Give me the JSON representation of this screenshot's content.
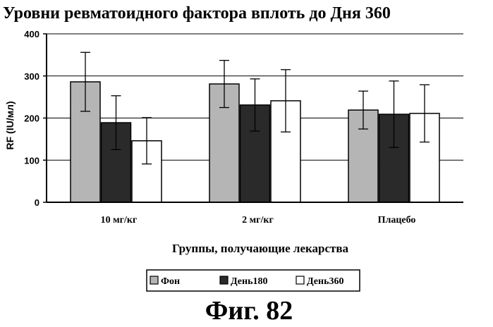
{
  "chart_data": {
    "type": "bar",
    "title": "Уровни ревматоидного фактора вплоть до Дня 360",
    "xlabel": "Группы, получающие лекарства",
    "ylabel": "RF (IU/мл)",
    "ylim": [
      0,
      400
    ],
    "yticks": [
      "0",
      "100",
      "200",
      "300",
      "400"
    ],
    "grid": true,
    "legend_position": "bottom",
    "categories": [
      "10 мг/кг",
      "2 мг/кг",
      "Плацебо"
    ],
    "series": [
      {
        "name": "Фон",
        "values": [
          286,
          281,
          219
        ],
        "error": [
          70,
          56,
          45
        ],
        "fill": "#b5b5b5"
      },
      {
        "name": "День180",
        "values": [
          189,
          231,
          209
        ],
        "error": [
          64,
          62,
          79
        ],
        "fill": "#2a2a2a"
      },
      {
        "name": "День360",
        "values": [
          146,
          241,
          211
        ],
        "error": [
          55,
          74,
          68
        ],
        "fill": "#ffffff"
      }
    ]
  },
  "figure_label": "Фиг. 82"
}
